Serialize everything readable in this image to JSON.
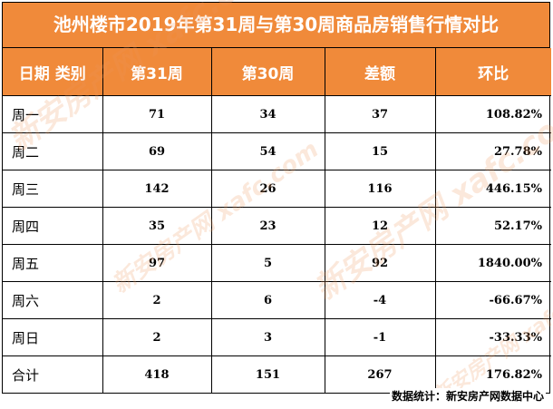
{
  "chart_data": {
    "type": "table",
    "title": "池州楼市2019年第31周与第30周商品房销售行情对比",
    "columns": [
      "日期  类别",
      "第31周",
      "第30周",
      "差额",
      "环比"
    ],
    "rows": [
      [
        "周一",
        "71",
        "34",
        "37",
        "108.82%"
      ],
      [
        "周二",
        "69",
        "54",
        "15",
        "27.78%"
      ],
      [
        "周三",
        "142",
        "26",
        "116",
        "446.15%"
      ],
      [
        "周四",
        "35",
        "23",
        "12",
        "52.17%"
      ],
      [
        "周五",
        "97",
        "5",
        "92",
        "1840.00%"
      ],
      [
        "周六",
        "2",
        "6",
        "-4",
        "-66.67%"
      ],
      [
        "周日",
        "2",
        "3",
        "-1",
        "-33.33%"
      ],
      [
        "合计",
        "418",
        "151",
        "267",
        "176.82%"
      ]
    ]
  },
  "source_note": "数据统计：新安房产网数据中心",
  "watermark": "新安房产网 xafc.com",
  "colors": {
    "header_bg": "#f08a3a",
    "header_text": "#ffffff"
  }
}
